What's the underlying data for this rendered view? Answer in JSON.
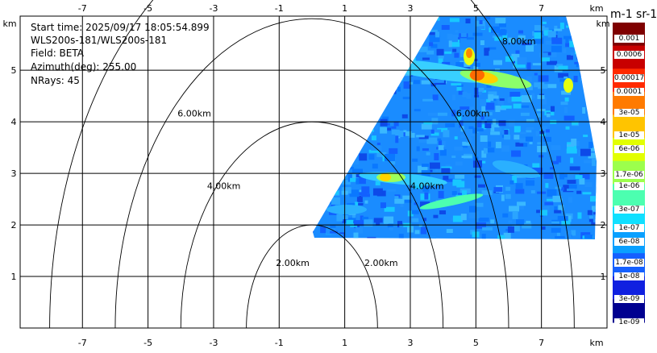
{
  "info": {
    "start_time": "Start time: 2025/09/17 18:05:54.899",
    "instrument": "WLS200s-181/WLS200s-181",
    "field": "Field: BETA",
    "azimuth": "Azimuth(deg): 255.00",
    "nrays": "NRays: 45"
  },
  "axes": {
    "x_unit": "km",
    "y_unit": "km",
    "x_range": [
      -8.9,
      9.0
    ],
    "y_range": [
      0,
      6.05
    ],
    "x_ticks": [
      "-7",
      "-5",
      "-3",
      "-1",
      "1",
      "3",
      "5",
      "7"
    ],
    "x_tick_values": [
      -7,
      -5,
      -3,
      -1,
      1,
      3,
      5,
      7
    ],
    "y_ticks": [
      "1",
      "2",
      "3",
      "4",
      "5"
    ],
    "y_tick_values": [
      1,
      2,
      3,
      4,
      5
    ]
  },
  "range_rings": [
    {
      "label": "2.00km",
      "value": 2
    },
    {
      "label": "4.00km",
      "value": 4
    },
    {
      "label": "6.00km",
      "value": 6
    },
    {
      "label": "8.00km",
      "value": 8
    }
  ],
  "colorbar": {
    "title": "m-1 sr-1",
    "labels": [
      "0.001",
      "0.0006",
      "0.00017",
      "0.0001",
      "3e-05",
      "1e-05",
      "6e-06",
      "1.7e-06",
      "1e-06",
      "3e-07",
      "1e-07",
      "6e-08",
      "1.7e-08",
      "1e-08",
      "3e-09",
      "1e-09"
    ],
    "label_positions": [
      0.07,
      0.14,
      0.24,
      0.3,
      0.39,
      0.49,
      0.55,
      0.66,
      0.71,
      0.81,
      0.89,
      0.95,
      1.04,
      1.1,
      1.2,
      1.3
    ],
    "colors": [
      "#7f0000",
      "#c80000",
      "#ff2a00",
      "#ff7a00",
      "#ffc400",
      "#e2ff00",
      "#9cff4c",
      "#4cffb0",
      "#10e0ff",
      "#0aa0ff",
      "#1560ff",
      "#1020e0",
      "#000090"
    ]
  }
}
